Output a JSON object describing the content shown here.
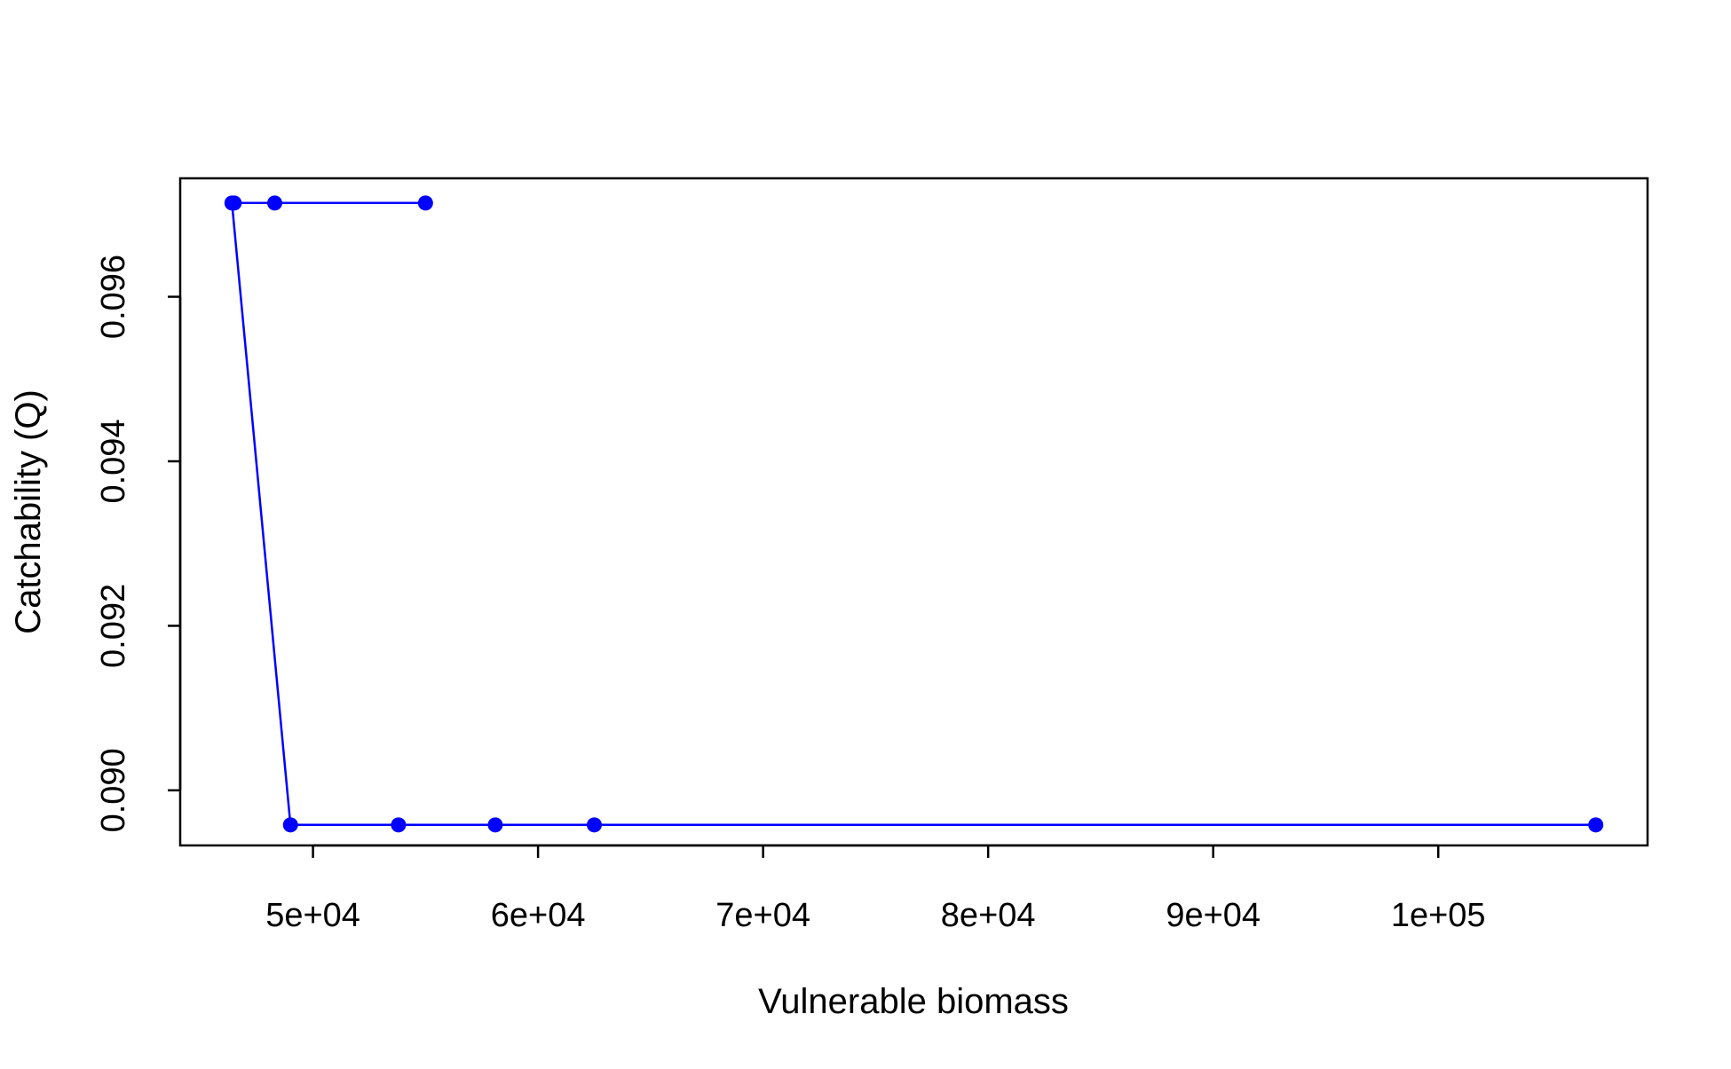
{
  "chart_data": {
    "type": "line",
    "title": "",
    "xlabel": "Vulnerable biomass",
    "ylabel": "Catchability (Q)",
    "xlim": [
      44100,
      109300
    ],
    "ylim": [
      0.08933,
      0.09744
    ],
    "x_ticks": [
      {
        "value": 50000,
        "label": "5e+04"
      },
      {
        "value": 60000,
        "label": "6e+04"
      },
      {
        "value": 70000,
        "label": "7e+04"
      },
      {
        "value": 80000,
        "label": "8e+04"
      },
      {
        "value": 90000,
        "label": "9e+04"
      },
      {
        "value": 100000,
        "label": "1e+05"
      }
    ],
    "y_ticks": [
      {
        "value": 0.09,
        "label": "0.090"
      },
      {
        "value": 0.092,
        "label": "0.092"
      },
      {
        "value": 0.094,
        "label": "0.094"
      },
      {
        "value": 0.096,
        "label": "0.096"
      }
    ],
    "grid": false,
    "legend": "none",
    "series": [
      {
        "color": "#0000ff",
        "x": [
          55000,
          48300,
          46500,
          46400,
          49000,
          53800,
          58100,
          62500,
          107000
        ],
        "y": [
          0.09714,
          0.09714,
          0.09714,
          0.09714,
          0.08958,
          0.08958,
          0.08958,
          0.08958,
          0.08958
        ]
      }
    ]
  }
}
